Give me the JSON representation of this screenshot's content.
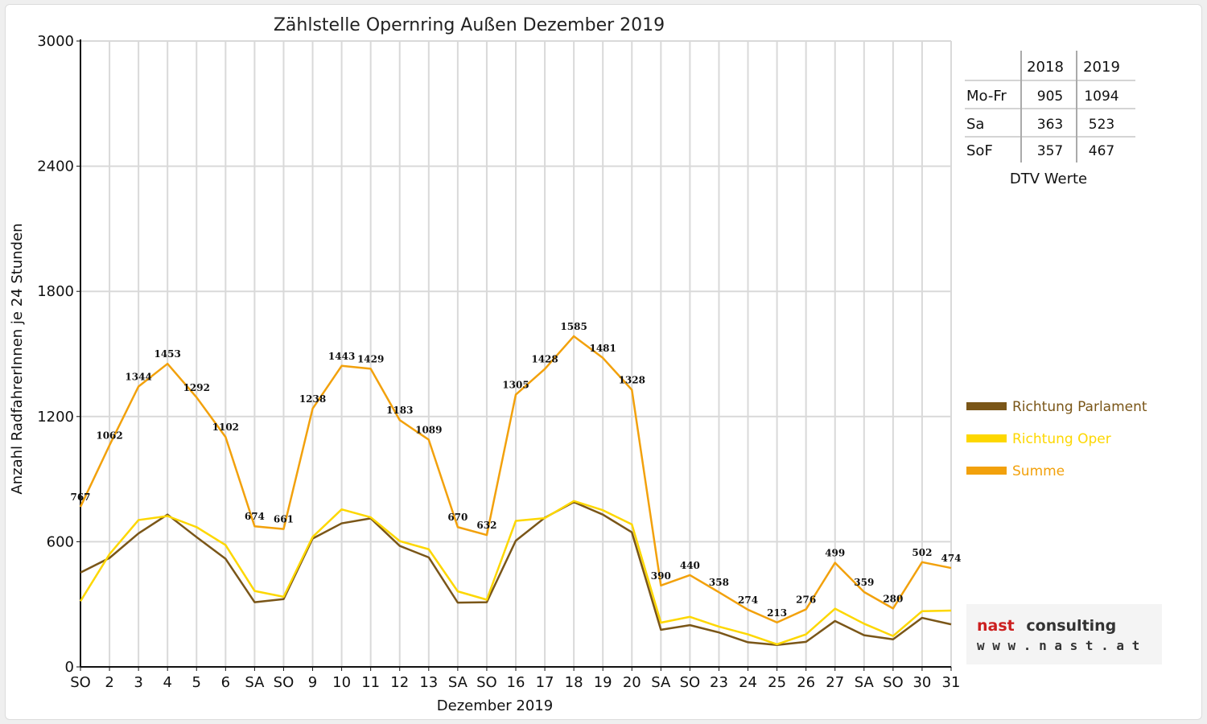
{
  "chart_data": {
    "type": "line",
    "title": "Zählstelle Opernring Außen Dezember 2019",
    "xlabel": "Dezember 2019",
    "ylabel": "Anzahl RadfahrerInnen je 24 Stunden",
    "ylim": [
      0,
      3000
    ],
    "yticks": [
      "0",
      "600",
      "1200",
      "1800",
      "2400",
      "3000"
    ],
    "grid": true,
    "legend_position": "right",
    "categories": [
      "SO",
      "2",
      "3",
      "4",
      "5",
      "6",
      "SA",
      "SO",
      "9",
      "10",
      "11",
      "12",
      "13",
      "SA",
      "SO",
      "16",
      "17",
      "18",
      "19",
      "20",
      "SA",
      "SO",
      "23",
      "24",
      "25",
      "26",
      "27",
      "SA",
      "SO",
      "30",
      "31"
    ],
    "red_categories": [
      0,
      7,
      14,
      21,
      24,
      25,
      28
    ],
    "series": [
      {
        "name": "Richtung Parlament",
        "color": "#7a5618",
        "values": [
          452,
          522,
          640,
          730,
          622,
          518,
          310,
          325,
          615,
          688,
          712,
          580,
          525,
          308,
          310,
          605,
          715,
          790,
          730,
          645,
          178,
          200,
          165,
          118,
          105,
          120,
          220,
          152,
          132,
          235,
          204
        ]
      },
      {
        "name": "Richtung Oper",
        "color": "#fdd700",
        "values": [
          315,
          540,
          704,
          723,
          670,
          584,
          364,
          336,
          623,
          755,
          717,
          603,
          564,
          362,
          322,
          700,
          713,
          795,
          751,
          683,
          212,
          240,
          193,
          156,
          108,
          156,
          279,
          207,
          148,
          267,
          270
        ]
      },
      {
        "name": "Summe",
        "color": "#f2a10c",
        "labels": true,
        "values": [
          767,
          1062,
          1344,
          1453,
          1292,
          1102,
          674,
          661,
          1238,
          1443,
          1429,
          1183,
          1089,
          670,
          632,
          1305,
          1428,
          1585,
          1481,
          1328,
          390,
          440,
          358,
          274,
          213,
          276,
          499,
          359,
          280,
          502,
          474
        ]
      }
    ]
  },
  "dtv_table": {
    "columns": [
      "2018",
      "2019"
    ],
    "rows": [
      {
        "label": "Mo-Fr",
        "v2018": "905",
        "v2019": "1094"
      },
      {
        "label": "Sa",
        "v2018": "363",
        "v2019": "523"
      },
      {
        "label": "SoF",
        "v2018": "357",
        "v2019": "467"
      }
    ],
    "caption": "DTV Werte"
  },
  "logo": {
    "word1": "nast",
    "word2": "consulting",
    "url": "w w w . n a s t . a t",
    "color1": "#cc1f1f",
    "color2": "#333333"
  },
  "colors": {
    "weekday_tick": "#111111",
    "holiday_tick": "#e01010",
    "grid": "#d9d9d9"
  }
}
